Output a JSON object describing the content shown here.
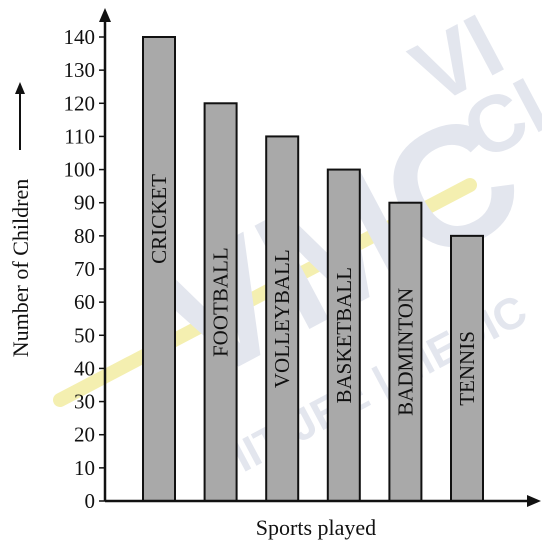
{
  "watermark": {
    "primary": "VMC",
    "secondary": "VI",
    "tertiary": "CL",
    "subtext": "IIT JEE | MEDIC",
    "highlight_color": "#f4efb0",
    "color": "#e3e6ee"
  },
  "chart_data": {
    "type": "bar",
    "title": "",
    "xlabel": "Sports played",
    "ylabel": "Number of Children",
    "categories": [
      "CRICKET",
      "FOOTBALL",
      "VOLLEYBALL",
      "BASKETBALL",
      "BADMINTON",
      "TENNIS"
    ],
    "values": [
      140,
      120,
      110,
      100,
      90,
      80
    ],
    "ylim": [
      0,
      140
    ],
    "yticks": [
      "0",
      "10",
      "20",
      "30",
      "40",
      "50",
      "60",
      "70",
      "80",
      "90",
      "100",
      "110",
      "120",
      "130",
      "140"
    ],
    "bar_color": "#a9a9a9",
    "grid": false,
    "legend": "none"
  }
}
